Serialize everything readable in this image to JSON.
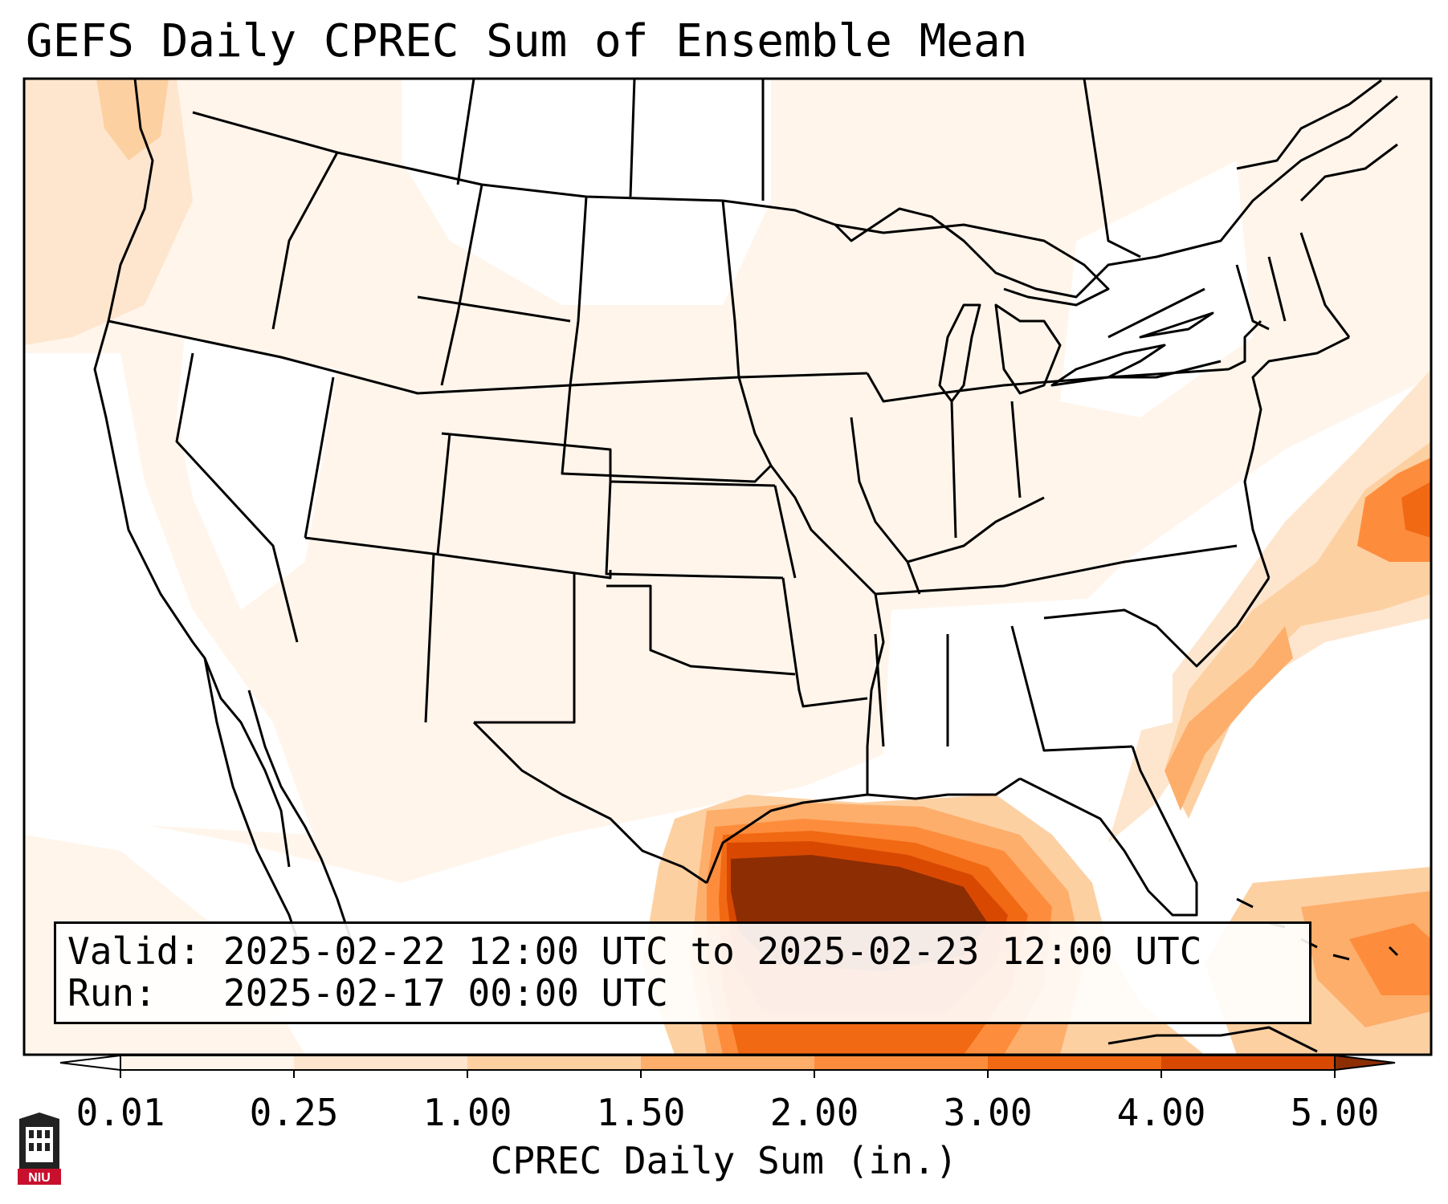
{
  "title": "GEFS Daily CPREC Sum of Ensemble Mean",
  "info": {
    "valid_label": "Valid:",
    "valid_value": "2025-02-22 12:00 UTC to 2025-02-23 12:00 UTC",
    "run_label": "Run:",
    "run_value": "2025-02-17 00:00 UTC"
  },
  "colorbar": {
    "label": "CPREC Daily Sum (in.)",
    "ticks": [
      "0.01",
      "0.25",
      "1.00",
      "1.50",
      "2.00",
      "3.00",
      "4.00",
      "5.00"
    ],
    "colors": [
      "#fff5eb",
      "#fee6ce",
      "#fdd0a2",
      "#fdae6b",
      "#fd8d3c",
      "#f16913",
      "#d94801",
      "#8c2d04"
    ],
    "extend": "both"
  },
  "logo": {
    "text": "NIU",
    "colors": {
      "shield": "#222222",
      "banner": "#c8102e"
    }
  },
  "map": {
    "projection": "Lambert conformal, CONUS",
    "max_region": "Northwestern Gulf of Mexico off the Texas/Louisiana coast",
    "secondary_region": "Atlantic off the Southeast US and near the Bahamas/Greater Antilles"
  }
}
